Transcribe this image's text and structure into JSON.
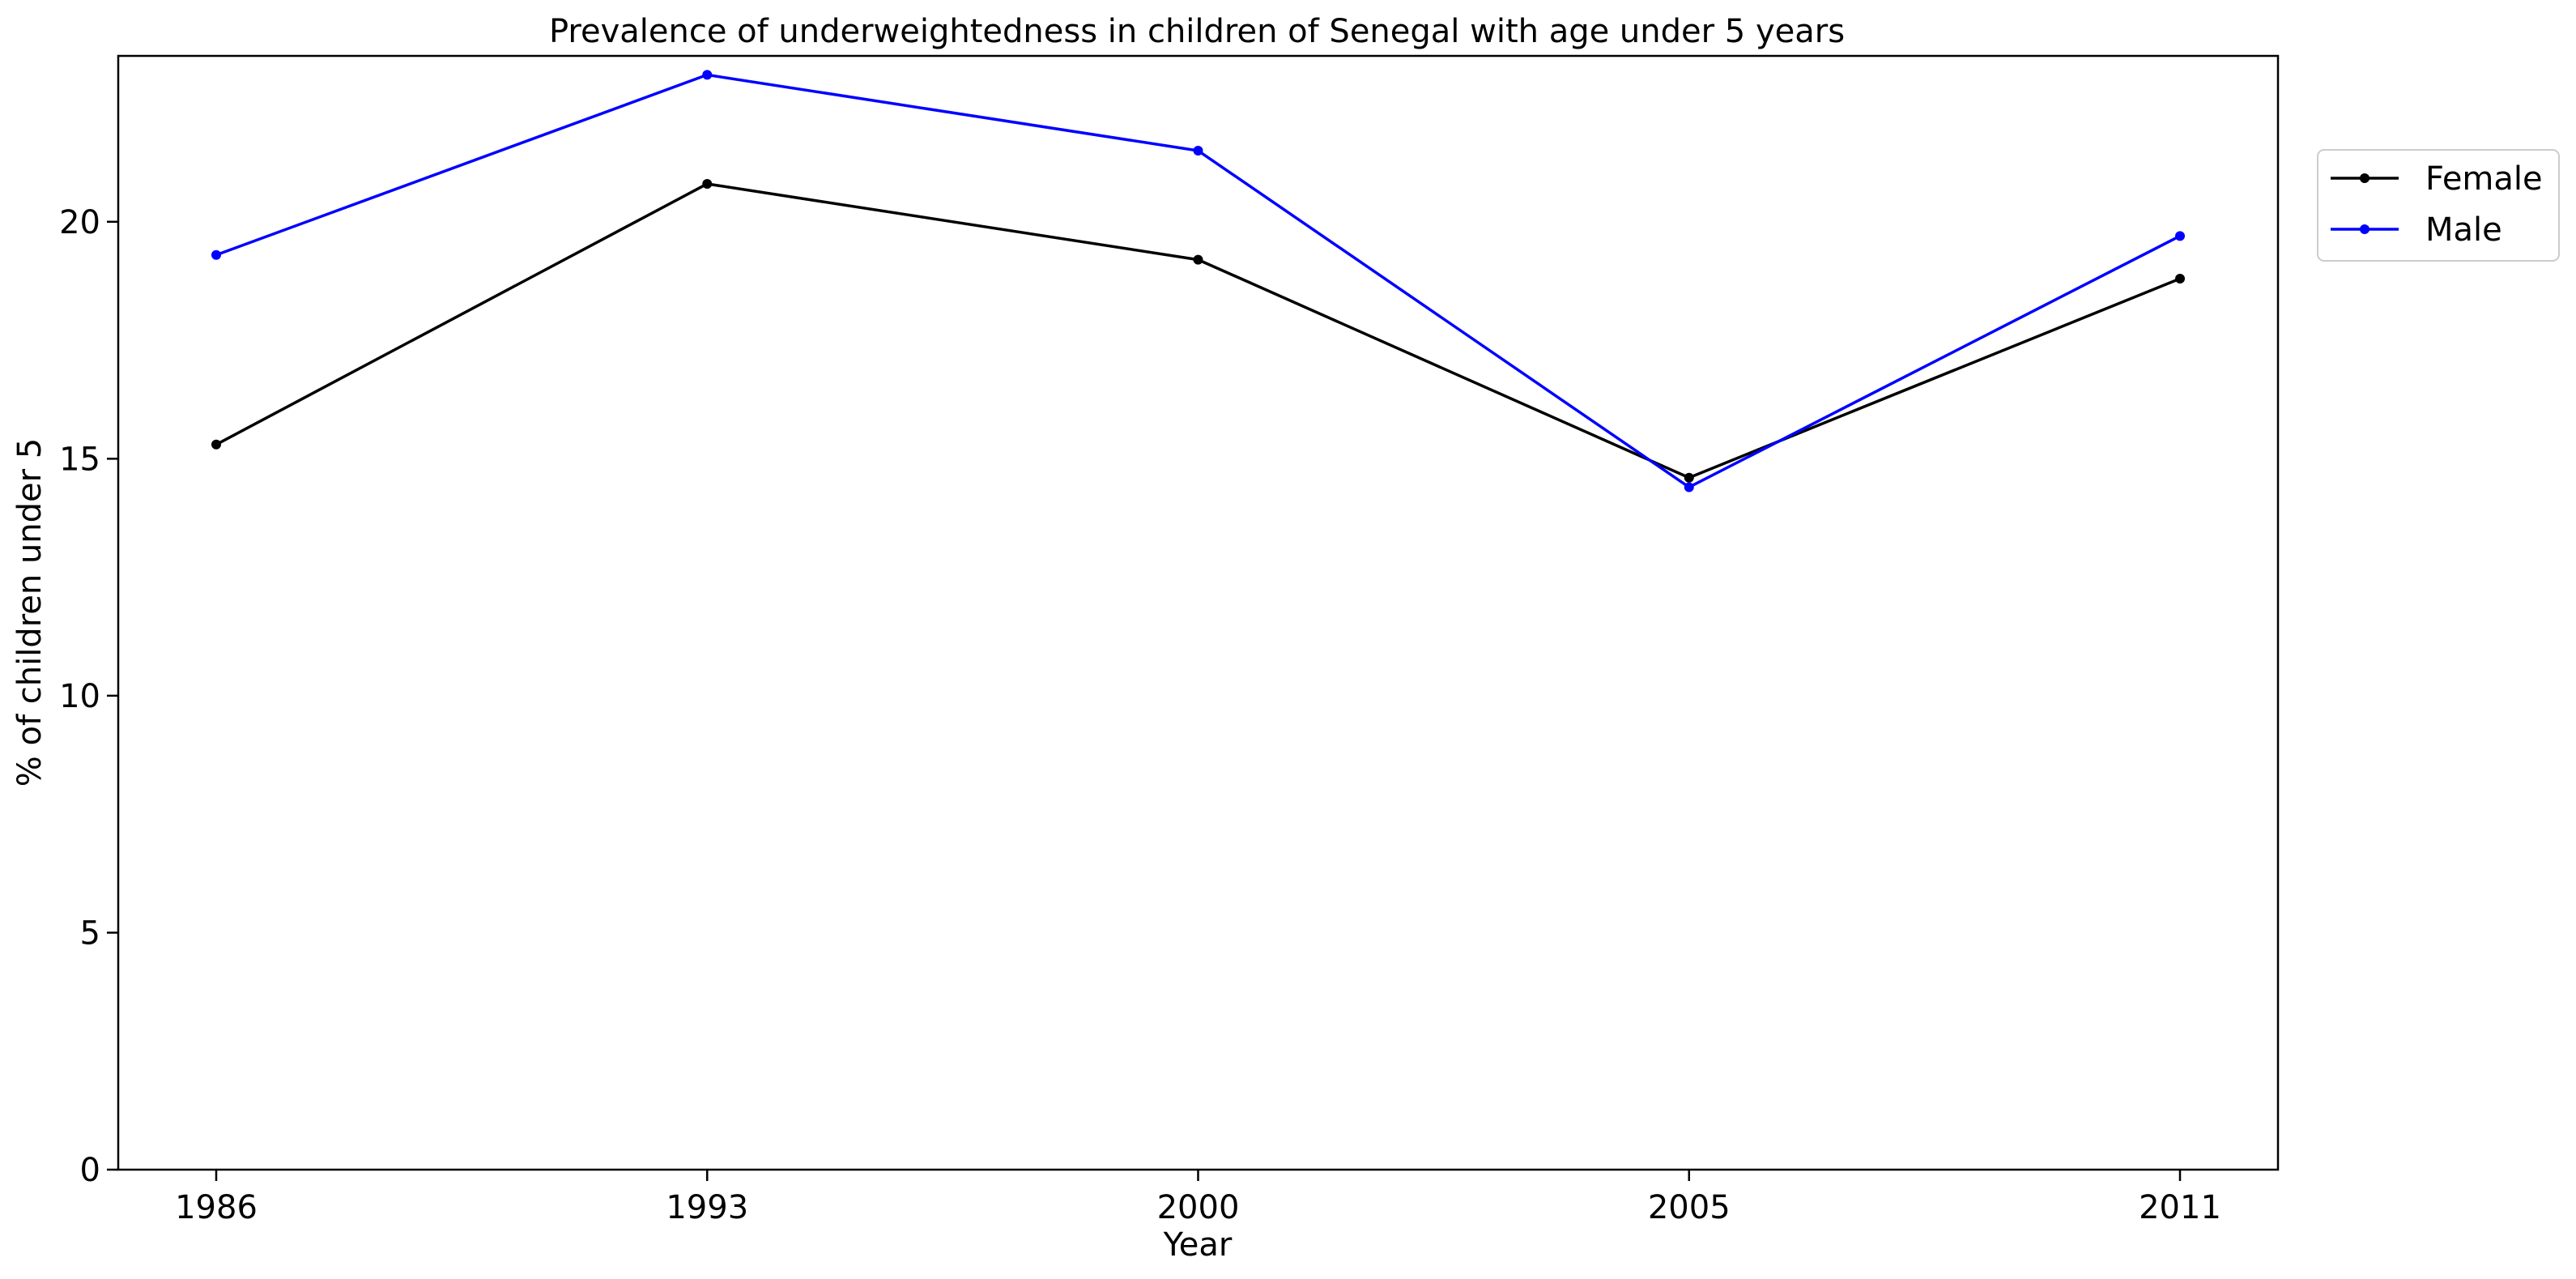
{
  "chart_data": {
    "type": "line",
    "title": "Prevalence of underweightedness in children of Senegal with age under 5 years",
    "xlabel": "Year",
    "ylabel": "% of children under 5",
    "categories": [
      "1986",
      "1993",
      "2000",
      "2005",
      "2011"
    ],
    "ylim": [
      0,
      23.5
    ],
    "yticks": [
      0,
      5,
      10,
      15,
      20
    ],
    "grid": false,
    "legend_position": "outside-top-right",
    "series": [
      {
        "name": "Female",
        "color": "#000000",
        "values": [
          15.3,
          20.8,
          19.2,
          14.6,
          18.8
        ]
      },
      {
        "name": "Male",
        "color": "#0000ff",
        "values": [
          19.3,
          23.1,
          21.5,
          14.4,
          19.7
        ]
      }
    ]
  }
}
